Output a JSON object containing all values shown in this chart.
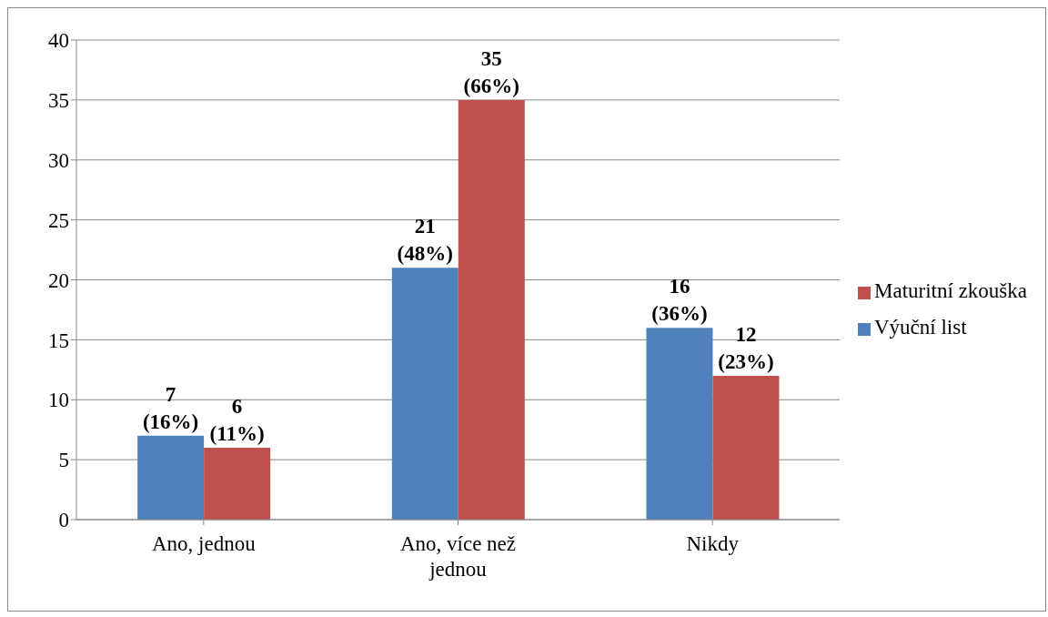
{
  "chart_data": {
    "type": "bar",
    "categories": [
      "Ano, jednou",
      "Ano, více než jednou",
      "Nikdy"
    ],
    "series": [
      {
        "name": "Výuční list",
        "color": "#4f81bd",
        "values": [
          7,
          21,
          16
        ],
        "value_labels": [
          "7 (16%)",
          "21 (48%)",
          "16 (36%)"
        ]
      },
      {
        "name": "Maturitní zkouška",
        "color": "#c0504d",
        "values": [
          6,
          35,
          12
        ],
        "value_labels": [
          "6 (11%)",
          "35 (66%)",
          "12 (23%)"
        ]
      }
    ],
    "ylim": [
      0,
      40
    ],
    "yticks": [
      0,
      5,
      10,
      15,
      20,
      25,
      30,
      35,
      40
    ],
    "grid": "y",
    "legend": "right"
  }
}
